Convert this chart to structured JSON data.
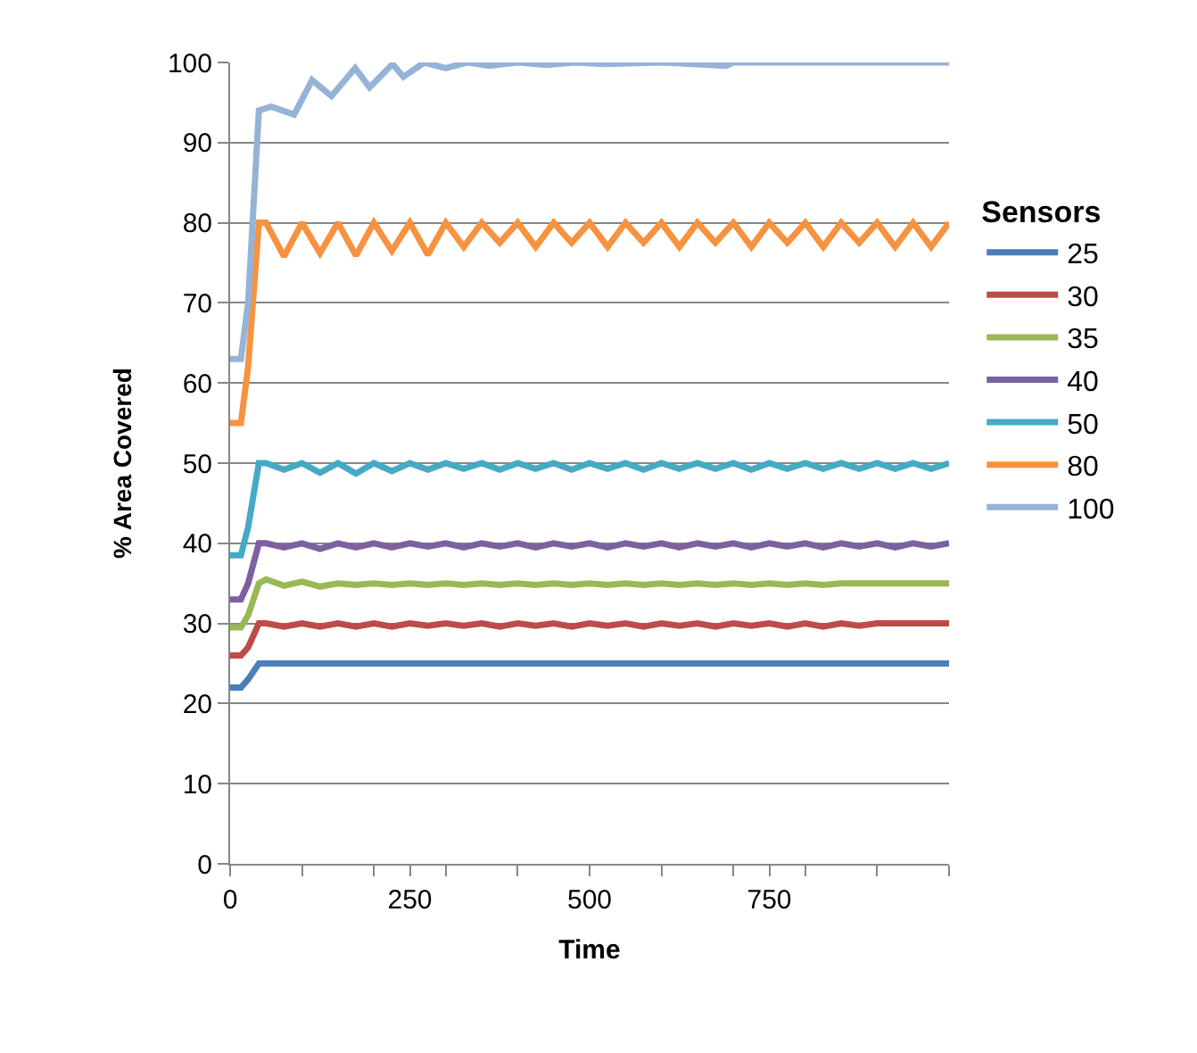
{
  "chart_data": {
    "type": "line",
    "xlabel": "Time",
    "ylabel": "% Area Covered",
    "legend_title": "Sensors",
    "legend": "right",
    "grid": "y",
    "marker": "none",
    "line_style": "solid",
    "x": [
      0,
      15,
      25,
      40,
      50,
      75,
      100,
      125,
      150,
      175,
      200,
      225,
      250,
      275,
      300,
      325,
      350,
      375,
      400,
      425,
      450,
      475,
      500,
      525,
      550,
      575,
      600,
      625,
      650,
      675,
      700,
      725,
      750,
      775,
      800,
      825,
      850,
      875,
      900,
      925,
      950,
      975,
      1000
    ],
    "xlim": [
      0,
      1000
    ],
    "xticks": [
      0,
      {
        "value": 100,
        "label": null
      },
      {
        "value": 200,
        "label": null
      },
      250,
      {
        "value": 300,
        "label": null
      },
      {
        "value": 400,
        "label": null
      },
      500,
      {
        "value": 600,
        "label": null
      },
      {
        "value": 700,
        "label": null
      },
      750,
      {
        "value": 800,
        "label": null
      },
      {
        "value": 900,
        "label": null
      },
      {
        "value": 1000,
        "label": null
      }
    ],
    "ylim": [
      0,
      100
    ],
    "yticks": [
      0,
      10,
      20,
      30,
      40,
      50,
      60,
      70,
      80,
      90,
      100
    ],
    "series": [
      {
        "name": "25",
        "color": "#4a7ebb",
        "values": [
          22,
          22,
          23,
          25,
          25,
          25,
          25,
          25,
          25,
          25,
          25,
          25,
          25,
          25,
          25,
          25,
          25,
          25,
          25,
          25,
          25,
          25,
          25,
          25,
          25,
          25,
          25,
          25,
          25,
          25,
          25,
          25,
          25,
          25,
          25,
          25,
          25,
          25,
          25,
          25,
          25,
          25,
          25
        ]
      },
      {
        "name": "30",
        "color": "#be4b48",
        "values": [
          26,
          26,
          27,
          30,
          30,
          29.6,
          30,
          29.6,
          30,
          29.6,
          30,
          29.6,
          30,
          29.7,
          30,
          29.7,
          30,
          29.6,
          30,
          29.7,
          30,
          29.6,
          30,
          29.7,
          30,
          29.6,
          30,
          29.7,
          30,
          29.6,
          30,
          29.7,
          30,
          29.6,
          30,
          29.6,
          30,
          29.7,
          30,
          30,
          30,
          30,
          30
        ]
      },
      {
        "name": "35",
        "color": "#98b954",
        "values": [
          29.5,
          29.5,
          31,
          35,
          35.5,
          34.7,
          35.2,
          34.6,
          35,
          34.8,
          35,
          34.8,
          35,
          34.8,
          35,
          34.8,
          35,
          34.8,
          35,
          34.8,
          35,
          34.8,
          35,
          34.8,
          35,
          34.8,
          35,
          34.8,
          35,
          34.8,
          35,
          34.8,
          35,
          34.8,
          35,
          34.8,
          35,
          35,
          35,
          35,
          35,
          35,
          35
        ]
      },
      {
        "name": "40",
        "color": "#7d60a0",
        "values": [
          33,
          33,
          35,
          40,
          40,
          39.5,
          40,
          39.3,
          40,
          39.5,
          40,
          39.5,
          40,
          39.6,
          40,
          39.5,
          40,
          39.6,
          40,
          39.5,
          40,
          39.6,
          40,
          39.5,
          40,
          39.6,
          40,
          39.5,
          40,
          39.6,
          40,
          39.5,
          40,
          39.6,
          40,
          39.5,
          40,
          39.6,
          40,
          39.5,
          40,
          39.6,
          40
        ]
      },
      {
        "name": "50",
        "color": "#46aac5",
        "values": [
          38.5,
          38.5,
          42,
          50,
          50,
          49.2,
          50,
          48.8,
          50,
          48.7,
          50,
          49,
          50,
          49.2,
          50,
          49.3,
          50,
          49.2,
          50,
          49.3,
          50,
          49.2,
          50,
          49.3,
          50,
          49.2,
          50,
          49.3,
          50,
          49.3,
          50,
          49.2,
          50,
          49.3,
          50,
          49.3,
          50,
          49.3,
          50,
          49.3,
          50,
          49.3,
          50
        ]
      },
      {
        "name": "80",
        "color": "#f69240",
        "values": [
          55,
          55,
          62,
          80,
          80,
          75.8,
          80,
          76.2,
          80,
          75.9,
          80,
          76.5,
          80,
          76,
          80,
          77,
          80,
          77.5,
          80,
          77,
          80,
          77.5,
          80,
          77,
          80,
          77.5,
          80,
          77,
          80,
          77.5,
          80,
          77,
          80,
          77.5,
          80,
          77,
          80,
          77.5,
          80,
          77,
          80,
          77,
          80
        ]
      },
      {
        "name": "100",
        "color": "#95b3d7",
        "x": [
          0,
          15,
          25,
          40,
          57,
          89,
          114,
          141,
          174,
          194,
          226,
          241,
          270,
          300,
          330,
          360,
          400,
          440,
          480,
          520,
          600,
          690,
          700,
          800,
          900,
          1000
        ],
        "values": [
          63,
          63,
          70,
          94,
          94.5,
          93.5,
          97.8,
          95.8,
          99.3,
          96.9,
          99.8,
          98.2,
          100,
          99.3,
          100,
          99.6,
          100,
          99.7,
          100,
          99.8,
          100,
          99.6,
          100,
          100,
          100,
          100
        ]
      }
    ]
  }
}
